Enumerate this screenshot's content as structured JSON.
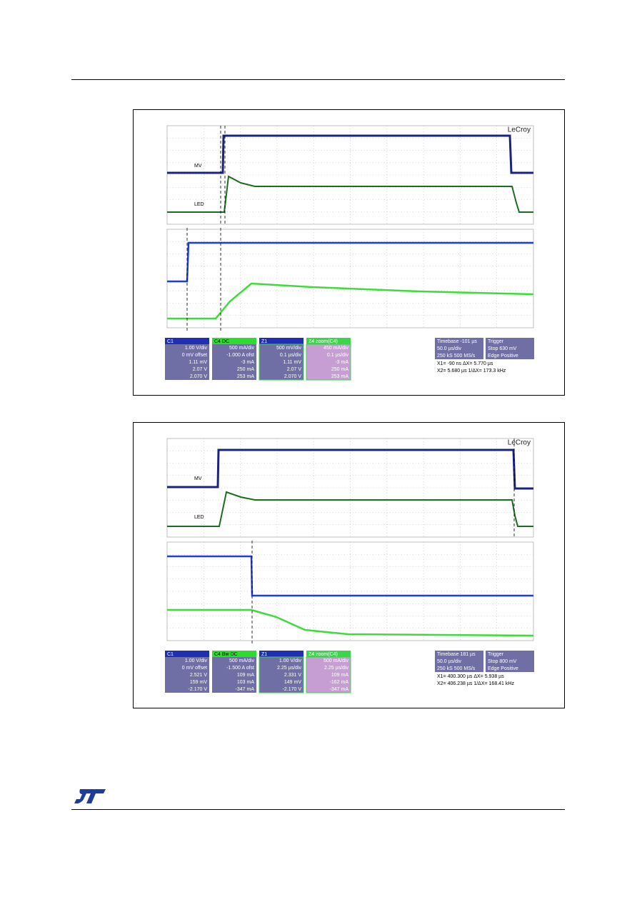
{
  "figure1": {
    "brand": "LeCroy",
    "trace_labels": [
      "MV",
      "LED"
    ],
    "channels": [
      {
        "header": "C1",
        "lines": [
          "1.00 V/div",
          "0 mV offset",
          "1.11 mV",
          "2.07 V",
          "2.070 V"
        ]
      },
      {
        "header": "C4 DC",
        "lines": [
          "500 mA/div",
          "-1.000 A ofst",
          "-3 mA",
          "250 mA",
          "253 mA"
        ]
      },
      {
        "header": "Z1",
        "lines": [
          "500 mV/div",
          "0.1 µs/div",
          "1.11 mV",
          "2.07 V",
          "2.070 V"
        ]
      },
      {
        "header": "Z4 zoom(C4)",
        "lines": [
          "450 mA/div",
          "0.1 µs/div",
          "-3 mA",
          "250 mA",
          "253 mA"
        ]
      }
    ],
    "timebase": [
      "Timebase -101 µs",
      "50.0 µs/div",
      "250 kS 500 MS/s"
    ],
    "trigger": [
      "Trigger",
      "Stop 630 mV",
      "Edge Positive"
    ],
    "cursors": [
      "X1= -90 ns  ΔX= 5.770 µs",
      "X2= 5.680 µs  1/ΔX= 173.3 kHz"
    ]
  },
  "figure2": {
    "brand": "LeCroy",
    "trace_labels": [
      "MV",
      "LED"
    ],
    "channels": [
      {
        "header": "C1",
        "lines": [
          "1.00 V/div",
          "0 mV offset",
          "2.521 V",
          "159 mV",
          "-2.170 V"
        ]
      },
      {
        "header": "C4 Bw DC",
        "lines": [
          "500 mA/div",
          "-1.500 A ofst",
          "109 mA",
          "103 mA",
          "-347 mA"
        ]
      },
      {
        "header": "Z1",
        "lines": [
          "1.00 V/div",
          "2.25 µs/div",
          "2.331 V",
          "149 mV",
          "-2.170 V"
        ]
      },
      {
        "header": "Z4 zoom(C4)",
        "lines": [
          "500 mA/div",
          "2.25 µs/div",
          "109 mA",
          "-162 mA",
          "-347 mA"
        ]
      }
    ],
    "timebase": [
      "Timebase 181 µs",
      "50.0 µs/div",
      "250 kS 500 MS/s"
    ],
    "trigger": [
      "Trigger",
      "Stop 800 mV",
      "Edge Positive"
    ],
    "cursors": [
      "X1= 400.300 µs  ΔX= 5.938 µs",
      "X2= 406.238 µs  1/ΔX= 168.41 kHz"
    ]
  }
}
